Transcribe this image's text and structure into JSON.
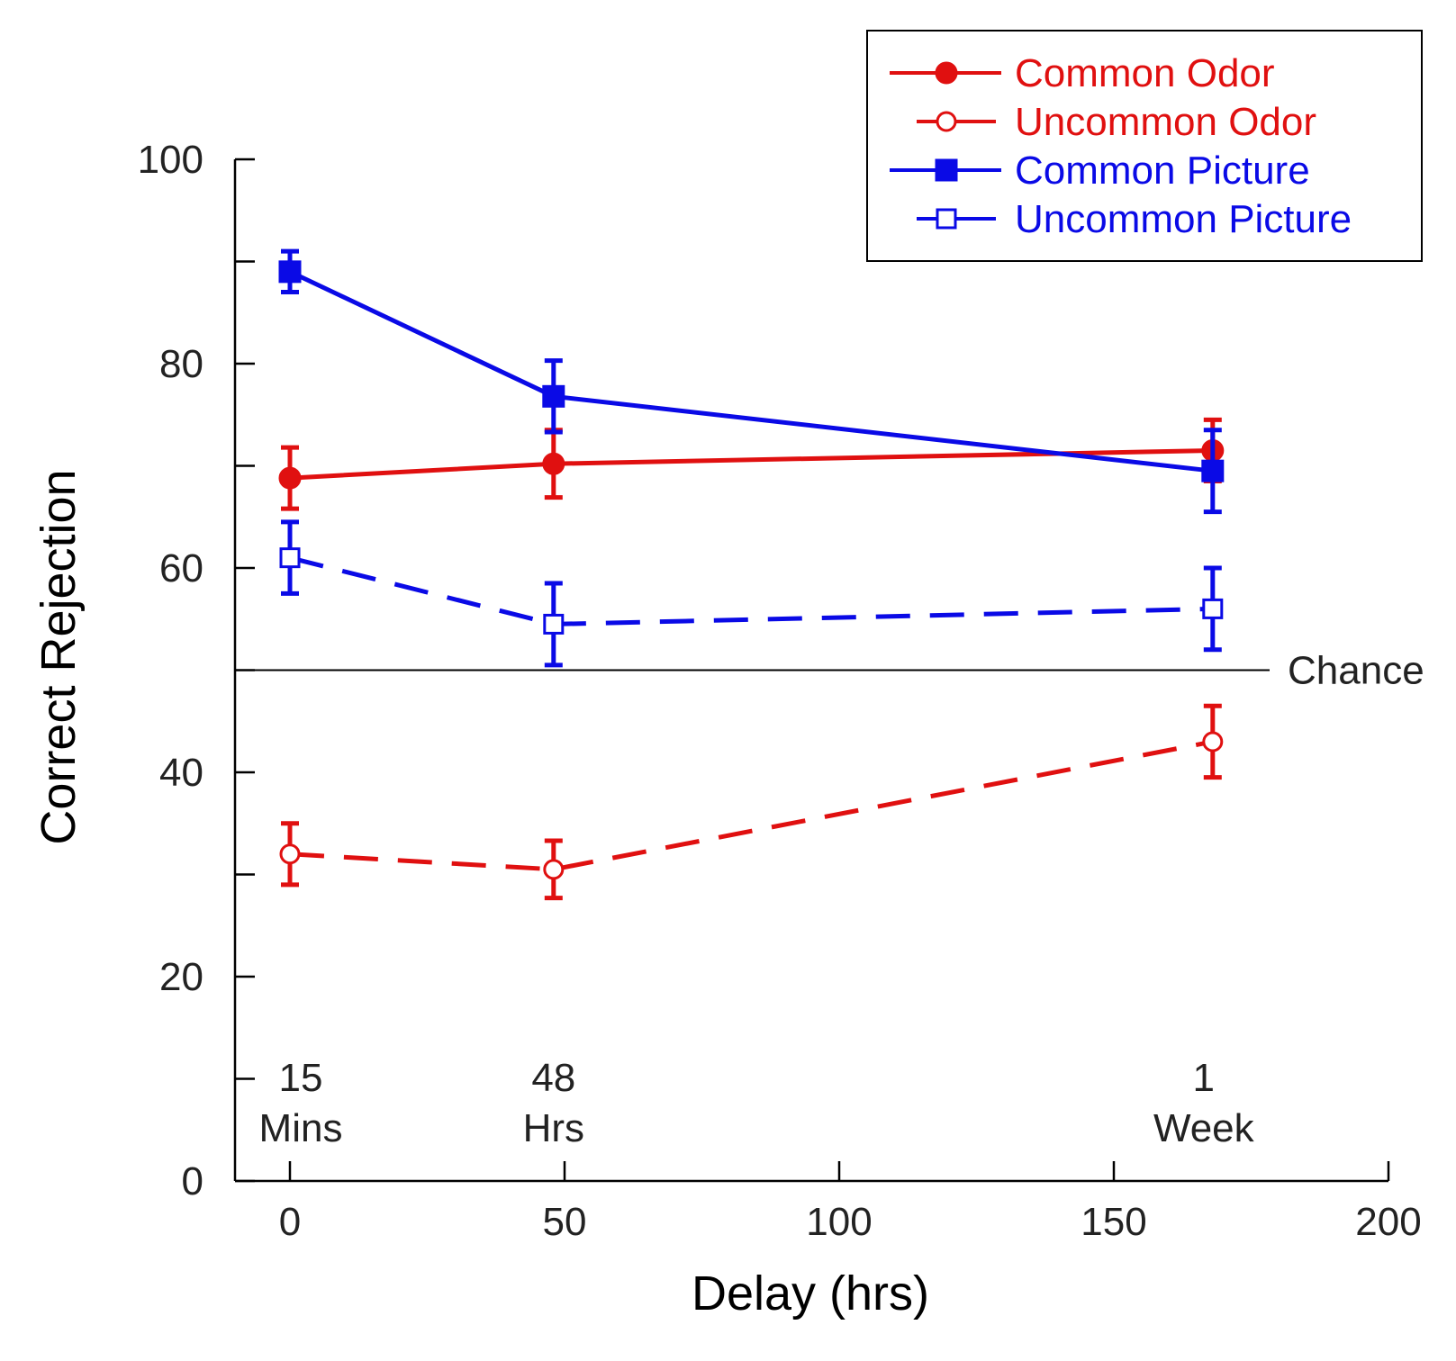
{
  "chart_data": {
    "type": "line",
    "xlabel": "Delay (hrs)",
    "ylabel": "Correct Rejection",
    "xlim": [
      -10,
      200
    ],
    "ylim": [
      0,
      100
    ],
    "xticks": [
      0,
      50,
      100,
      150,
      200
    ],
    "yticks": [
      0,
      10,
      20,
      30,
      40,
      50,
      60,
      70,
      80,
      90,
      100
    ],
    "ytick_labels": [
      "0",
      "",
      "20",
      "",
      "40",
      "",
      "60",
      "",
      "80",
      "",
      "100"
    ],
    "chance_level": 50,
    "chance_label": "Chance",
    "delay_annotations": [
      {
        "x": 0,
        "line1": "15",
        "line2": "Mins"
      },
      {
        "x": 48,
        "line1": "48",
        "line2": "Hrs"
      },
      {
        "x": 168,
        "line1": "1",
        "line2": "Week"
      }
    ],
    "legend_position": "top-right",
    "series": [
      {
        "name": "Common Odor",
        "color": "#e01010",
        "dashed": false,
        "marker": "circle-filled",
        "x": [
          0,
          48,
          168
        ],
        "y": [
          68.8,
          70.2,
          71.5
        ],
        "err": [
          3.0,
          3.3,
          3.0
        ]
      },
      {
        "name": "Uncommon Odor",
        "color": "#e01010",
        "dashed": true,
        "marker": "circle-open",
        "x": [
          0,
          48,
          168
        ],
        "y": [
          32,
          30.5,
          43
        ],
        "err": [
          3.0,
          2.8,
          3.5
        ]
      },
      {
        "name": "Common Picture",
        "color": "#0a0ae6",
        "dashed": false,
        "marker": "square-filled",
        "x": [
          0,
          48,
          168
        ],
        "y": [
          89,
          76.8,
          69.5
        ],
        "err": [
          2.0,
          3.5,
          4.0
        ]
      },
      {
        "name": "Uncommon Picture",
        "color": "#0a0ae6",
        "dashed": true,
        "marker": "square-open",
        "x": [
          0,
          48,
          168
        ],
        "y": [
          61,
          54.5,
          56
        ],
        "err": [
          3.5,
          4.0,
          4.0
        ]
      }
    ]
  }
}
